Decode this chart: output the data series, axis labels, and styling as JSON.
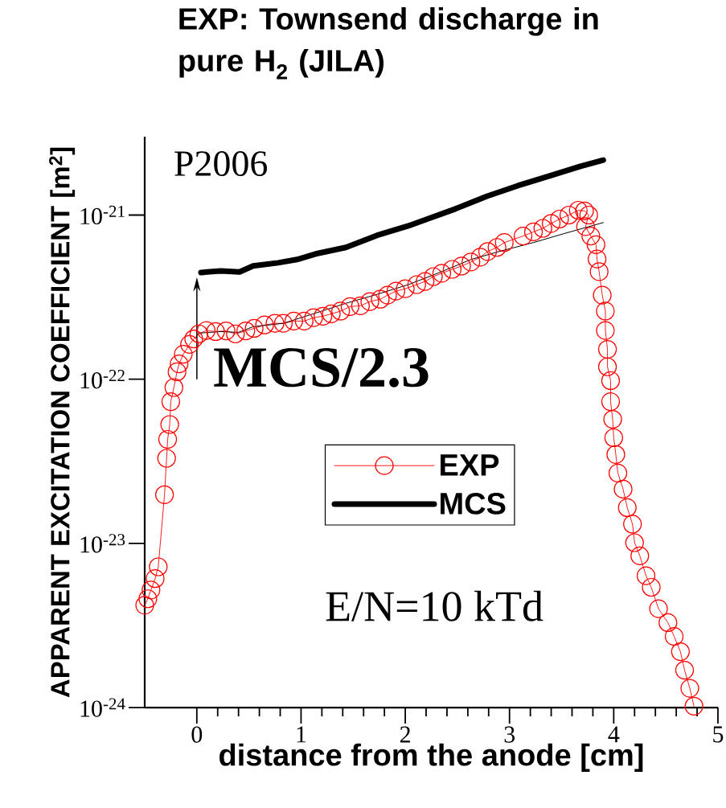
{
  "chart_data": {
    "type": "line",
    "title": "EXP: Townsend discharge in pure H$_{2}$ (JILA)",
    "xlabel": "distance from the anode [cm]",
    "ylabel": "APPARENT EXCITATION COEFFICIENT [m$^{2}$]",
    "log": "y",
    "xlim": [
      -0.5,
      5
    ],
    "ylim": [
      1e-24,
      3e-21
    ],
    "xticks": [
      0,
      1,
      2,
      3,
      4,
      5
    ],
    "yticks": [
      {
        "value": 1e-24,
        "label": "10$^{-24}$"
      },
      {
        "value": 1e-23,
        "label": "10$^{-23}$"
      },
      {
        "value": 1e-22,
        "label": "10$^{-22}$"
      },
      {
        "value": 1e-21,
        "label": "10$^{-21}$"
      }
    ],
    "legend": "center",
    "grid": false,
    "annotations": [
      "P2006",
      "MCS/2.3",
      "E/N=10 kTd"
    ],
    "series": [
      {
        "name": "EXP",
        "color": "#ff0000",
        "marker": "circle",
        "x": [
          -0.5,
          -0.47,
          -0.44,
          -0.4,
          -0.37,
          -0.31,
          -0.29,
          -0.28,
          -0.26,
          -0.25,
          -0.22,
          -0.19,
          -0.17,
          -0.13,
          -0.07,
          -0.03,
          0.02,
          0.09,
          0.18,
          0.28,
          0.37,
          0.47,
          0.55,
          0.65,
          0.75,
          0.83,
          0.93,
          1.03,
          1.12,
          1.21,
          1.29,
          1.38,
          1.47,
          1.57,
          1.66,
          1.76,
          1.83,
          1.91,
          2.0,
          2.11,
          2.19,
          2.27,
          2.35,
          2.45,
          2.54,
          2.63,
          2.72,
          2.79,
          2.88,
          2.95,
          3.13,
          3.23,
          3.32,
          3.4,
          3.48,
          3.57,
          3.66,
          3.72,
          3.76,
          3.73,
          3.78,
          3.83,
          3.84,
          3.86,
          3.89,
          3.92,
          3.92,
          3.94,
          3.94,
          3.97,
          3.97,
          3.99,
          4.0,
          4.02,
          4.04,
          4.09,
          4.13,
          4.18,
          4.2,
          4.25,
          4.31,
          4.36,
          4.43,
          4.52,
          4.58,
          4.64,
          4.68,
          4.73,
          4.77
        ],
        "values": [
          4.2e-24,
          4.6e-24,
          5.2e-24,
          6.1e-24,
          7.2e-24,
          1.98e-23,
          3.3e-23,
          4.3e-23,
          5.3e-23,
          7.3e-23,
          8.9e-23,
          1.11e-22,
          1.24e-22,
          1.42e-22,
          1.63e-22,
          1.76e-22,
          1.89e-22,
          1.98e-22,
          1.95e-22,
          1.97e-22,
          1.89e-22,
          1.97e-22,
          2.04e-22,
          2.14e-22,
          2.19e-22,
          2.19e-22,
          2.26e-22,
          2.26e-22,
          2.37e-22,
          2.42e-22,
          2.5e-22,
          2.6e-22,
          2.77e-22,
          2.8e-22,
          2.97e-22,
          3.07e-22,
          3.25e-22,
          3.44e-22,
          3.56e-22,
          3.77e-22,
          3.94e-22,
          4.22e-22,
          4.42e-22,
          4.67e-22,
          4.89e-22,
          5.18e-22,
          5.54e-22,
          6e-22,
          6.35e-22,
          6.8e-22,
          7.45e-22,
          7.9e-22,
          8.3e-22,
          8.9e-22,
          9.45e-22,
          1e-21,
          1.07e-21,
          1.06e-21,
          1e-21,
          8.5e-22,
          7.45e-22,
          6.6e-22,
          5.4e-22,
          4.52e-22,
          3.25e-22,
          2.6e-22,
          1.98e-22,
          1.52e-22,
          1.19e-22,
          9.8e-23,
          7.3e-23,
          5.7e-23,
          4.4e-23,
          3.48e-23,
          2.68e-23,
          2.14e-23,
          1.65e-23,
          1.31e-23,
          1.01e-23,
          8.4e-24,
          6.35e-24,
          5.4e-24,
          4e-24,
          3.29e-24,
          2.71e-24,
          2.19e-24,
          1.69e-24,
          1.31e-24,
          1.02e-24
        ]
      },
      {
        "name": "MCS",
        "color": "#000000",
        "marker": "none",
        "x": [
          0.04,
          0.23,
          0.41,
          0.54,
          0.78,
          0.96,
          1.14,
          1.43,
          1.73,
          2.03,
          2.21,
          2.48,
          2.78,
          3.08,
          3.37,
          3.68,
          3.9
        ],
        "values": [
          4.47e-22,
          4.57e-22,
          4.5e-22,
          4.9e-22,
          5.12e-22,
          5.36e-22,
          5.8e-22,
          6.35e-22,
          7.53e-22,
          8.6e-22,
          9.45e-22,
          1.09e-21,
          1.3e-21,
          1.51e-21,
          1.72e-21,
          1.98e-21,
          2.16e-21
        ]
      },
      {
        "color": "#000000",
        "marker": "none",
        "x": [
          0.02,
          0.23,
          0.4,
          0.54,
          0.83,
          1.14,
          1.43,
          1.73,
          2.03,
          2.33,
          2.63,
          2.93,
          3.23,
          3.52,
          3.9
        ],
        "values": [
          1.91e-22,
          1.95e-22,
          1.93e-22,
          2.09e-22,
          2.19e-22,
          2.53e-22,
          2.9e-22,
          3.29e-22,
          3.77e-22,
          4.47e-22,
          5.36e-22,
          6.07e-22,
          6.8e-22,
          7.7e-22,
          9e-22
        ]
      }
    ]
  }
}
